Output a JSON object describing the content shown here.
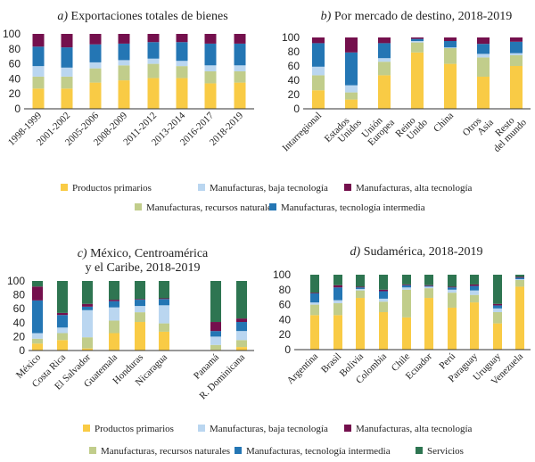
{
  "colors": {
    "Productos primarios": "#F9CB45",
    "Manufacturas, recursos naturales": "#C1CD8B",
    "Manufacturas, baja tecnología": "#BAD6F0",
    "Manufacturas, tecnología intermedia": "#2476B4",
    "Manufacturas, alta tecnología": "#74104D",
    "Servicios": "#2E7551"
  },
  "legend_top": [
    "Productos primarios",
    "Manufacturas, baja tecnología",
    "Manufacturas, alta tecnología",
    "Manufacturas, recursos naturales",
    "Manufacturas, tecnología intermedia"
  ],
  "legend_bottom": [
    "Productos primarios",
    "Manufacturas, baja tecnología",
    "Manufacturas, alta tecnología",
    "Manufacturas, recursos naturales",
    "Manufacturas, tecnología intermedia",
    "Servicios"
  ],
  "chart_data": [
    {
      "type": "bar",
      "stacked": true,
      "label": "a)",
      "title": "Exportaciones totales de bienes",
      "ylim": [
        0,
        100
      ],
      "yticks": [
        0,
        20,
        40,
        60,
        80,
        100
      ],
      "categories": [
        "1998-1999",
        "2001-2002",
        "2005-2006",
        "2008-2009",
        "2011-2012",
        "2013-2014",
        "2016-2017",
        "2018-2019"
      ],
      "series": [
        {
          "name": "Productos primarios",
          "values": [
            27,
            27,
            35,
            38,
            41,
            41,
            34,
            35
          ]
        },
        {
          "name": "Manufacturas, recursos naturales",
          "values": [
            16,
            16,
            19,
            20,
            19,
            16,
            16,
            15
          ]
        },
        {
          "name": "Manufacturas, baja tecnología",
          "values": [
            14,
            12,
            8,
            7,
            7,
            7,
            8,
            8
          ]
        },
        {
          "name": "Manufacturas, tecnología intermedia",
          "values": [
            26,
            27,
            24,
            22,
            22,
            25,
            29,
            29
          ]
        },
        {
          "name": "Manufacturas, alta tecnología",
          "values": [
            17,
            18,
            14,
            13,
            11,
            11,
            13,
            13
          ]
        }
      ]
    },
    {
      "type": "bar",
      "stacked": true,
      "label": "b)",
      "title": "Por mercado de destino, 2018-2019",
      "ylim": [
        0,
        100
      ],
      "yticks": [
        0,
        20,
        40,
        60,
        80,
        100
      ],
      "categories": [
        "Intarregional",
        "Estados\nUnidos",
        "Unión\nEuropea",
        "Reino\nUnido",
        "China",
        "Otros\nAsia",
        "Resto\ndel mundo"
      ],
      "series": [
        {
          "name": "Productos primarios",
          "values": [
            26,
            13,
            47,
            79,
            63,
            45,
            60
          ]
        },
        {
          "name": "Manufacturas, recursos naturales",
          "values": [
            21,
            10,
            19,
            14,
            22,
            27,
            15
          ]
        },
        {
          "name": "Manufacturas, baja tecnología",
          "values": [
            12,
            10,
            5,
            2,
            1,
            5,
            3
          ]
        },
        {
          "name": "Manufacturas, tecnología intermedia",
          "values": [
            33,
            46,
            21,
            3,
            9,
            14,
            16
          ]
        },
        {
          "name": "Manufacturas, alta tecnología",
          "values": [
            8,
            21,
            8,
            2,
            5,
            9,
            6
          ]
        }
      ]
    },
    {
      "type": "bar",
      "stacked": true,
      "label": "c)",
      "title": "México, Centroamérica\ny el Caribe, 2018-2019",
      "ylim": [
        0,
        100
      ],
      "yticks": [
        0,
        20,
        40,
        60,
        80,
        100
      ],
      "categories": [
        "México",
        "Costa Rica",
        "El Salvador",
        "Guatemala",
        "Honduras",
        "Nicaragua",
        "Panamá",
        "R. Dominicana"
      ],
      "series": [
        {
          "name": "Productos primarios",
          "values": [
            10,
            15,
            3,
            25,
            41,
            27,
            1,
            5
          ]
        },
        {
          "name": "Manufacturas, recursos naturales",
          "values": [
            7,
            10,
            16,
            18,
            14,
            12,
            7,
            10
          ]
        },
        {
          "name": "Manufacturas, baja tecnología",
          "values": [
            8,
            8,
            39,
            19,
            9,
            26,
            12,
            13
          ]
        },
        {
          "name": "Manufacturas, tecnología intermedia",
          "values": [
            47,
            18,
            5,
            9,
            9,
            9,
            8,
            13
          ]
        },
        {
          "name": "Manufacturas, alta tecnología",
          "values": [
            20,
            3,
            4,
            2,
            1,
            1,
            13,
            5
          ]
        },
        {
          "name": "Servicios",
          "values": [
            8,
            46,
            33,
            27,
            26,
            25,
            59,
            54
          ]
        }
      ]
    },
    {
      "type": "bar",
      "stacked": true,
      "label": "d)",
      "title": "Sudamérica, 2018-2019",
      "ylim": [
        0,
        100
      ],
      "yticks": [
        0,
        20,
        40,
        60,
        80,
        100
      ],
      "categories": [
        "Argentina",
        "Brasil",
        "Bolivia",
        "Colombia",
        "Chile",
        "Ecuador",
        "Perú",
        "Paraguay",
        "Uruguay",
        "Venezuela"
      ],
      "series": [
        {
          "name": "Productos primarios",
          "values": [
            46,
            46,
            69,
            50,
            43,
            69,
            56,
            63,
            35,
            84
          ]
        },
        {
          "name": "Manufacturas, recursos naturales",
          "values": [
            14,
            16,
            10,
            14,
            37,
            13,
            20,
            10,
            15,
            9
          ]
        },
        {
          "name": "Manufacturas, baja tecnología",
          "values": [
            3,
            4,
            2,
            4,
            3,
            2,
            4,
            6,
            5,
            1
          ]
        },
        {
          "name": "Manufacturas, tecnología intermedia",
          "values": [
            12,
            17,
            2,
            10,
            3,
            1,
            3,
            6,
            4,
            2
          ]
        },
        {
          "name": "Manufacturas, alta tecnología",
          "values": [
            1,
            3,
            1,
            2,
            1,
            1,
            1,
            2,
            2,
            1
          ]
        },
        {
          "name": "Servicios",
          "values": [
            24,
            14,
            16,
            20,
            13,
            14,
            16,
            13,
            39,
            3
          ]
        }
      ]
    }
  ]
}
